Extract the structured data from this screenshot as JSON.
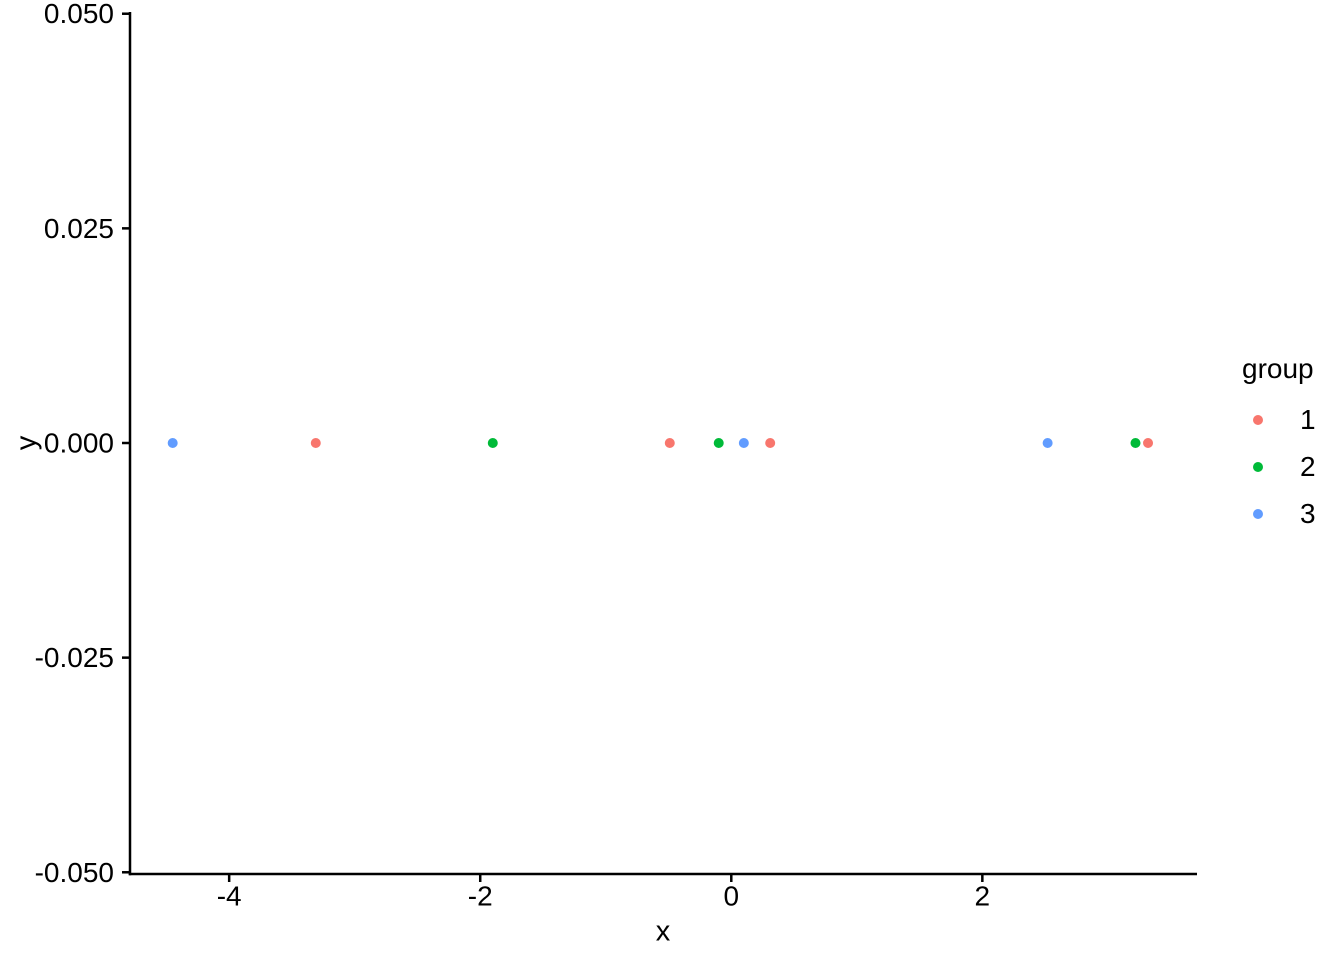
{
  "chart_data": {
    "type": "scatter",
    "title": "",
    "xlabel": "x",
    "ylabel": "y",
    "xlim": [
      -4.79,
      3.71
    ],
    "ylim": [
      -0.0502,
      0.0502
    ],
    "x_ticks": [
      {
        "value": -4,
        "label": "-4"
      },
      {
        "value": -2,
        "label": "-2"
      },
      {
        "value": 0,
        "label": "0"
      },
      {
        "value": 2,
        "label": "2"
      }
    ],
    "y_ticks": [
      {
        "value": 0.05,
        "label": "0.050"
      },
      {
        "value": 0.025,
        "label": "0.025"
      },
      {
        "value": 0.0,
        "label": "0.000"
      },
      {
        "value": -0.025,
        "label": "-0.025"
      },
      {
        "value": -0.05,
        "label": "-0.050"
      }
    ],
    "grid": false,
    "background": "#FFFFFF",
    "axis_color": "#000000",
    "text_color": "#000000",
    "legend": {
      "title": "group",
      "position": "right",
      "items": [
        {
          "label": "1",
          "color": "#F8766D"
        },
        {
          "label": "2",
          "color": "#00BA38"
        },
        {
          "label": "3",
          "color": "#619CFF"
        }
      ]
    },
    "series": [
      {
        "name": "1",
        "color": "#F8766D",
        "points": [
          [
            -3.31,
            0
          ],
          [
            -0.49,
            0
          ],
          [
            0.31,
            0
          ],
          [
            3.32,
            0
          ]
        ]
      },
      {
        "name": "2",
        "color": "#00BA38",
        "points": [
          [
            -1.9,
            0
          ],
          [
            -0.1,
            0
          ],
          [
            3.22,
            0
          ]
        ]
      },
      {
        "name": "3",
        "color": "#619CFF",
        "points": [
          [
            -4.45,
            0
          ],
          [
            0.1,
            0
          ],
          [
            2.52,
            0
          ]
        ]
      }
    ]
  }
}
